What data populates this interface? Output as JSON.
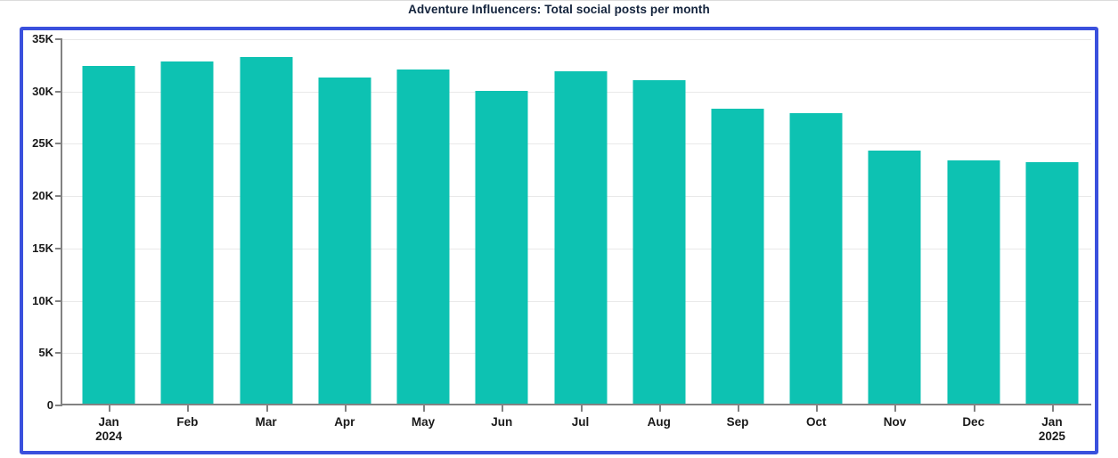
{
  "chart_data": {
    "type": "bar",
    "title": "Adventure Influencers: Total social posts per month",
    "categories": [
      "Jan 2024",
      "Feb",
      "Mar",
      "Apr",
      "May",
      "Jun",
      "Jul",
      "Aug",
      "Sep",
      "Oct",
      "Nov",
      "Dec",
      "Jan 2025"
    ],
    "x_tick_labels": [
      {
        "label": "Jan",
        "sublabel": "2024"
      },
      {
        "label": "Feb"
      },
      {
        "label": "Mar"
      },
      {
        "label": "Apr"
      },
      {
        "label": "May"
      },
      {
        "label": "Jun"
      },
      {
        "label": "Jul"
      },
      {
        "label": "Aug"
      },
      {
        "label": "Sep"
      },
      {
        "label": "Oct"
      },
      {
        "label": "Nov"
      },
      {
        "label": "Dec"
      },
      {
        "label": "Jan",
        "sublabel": "2025"
      }
    ],
    "values": [
      32400,
      32850,
      33300,
      31300,
      32100,
      30000,
      31950,
      31050,
      28350,
      27900,
      24300,
      23400,
      23200
    ],
    "xlabel": "",
    "ylabel": "",
    "ylim": [
      0,
      35000
    ],
    "ytick_interval": 5000,
    "ytick_labels": [
      "35K",
      "30K",
      "25K",
      "20K",
      "15K",
      "10K",
      "5K",
      "0"
    ],
    "grid": "horizontal-only",
    "legend": "none"
  },
  "colors": {
    "bar": "#0dc2b2",
    "frame_border": "#3a50dd",
    "gridline": "#e9e9e9",
    "axis": "#828282",
    "tick_text": "#1a1a1a",
    "title_text": "#13233c",
    "background": "#ffffff"
  }
}
